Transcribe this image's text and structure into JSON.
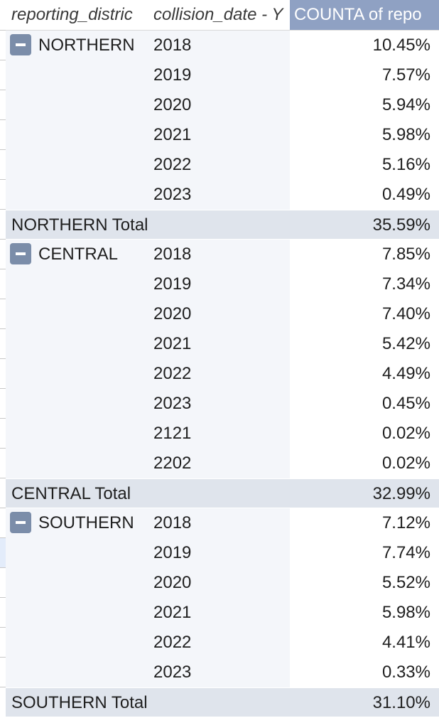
{
  "header": {
    "col1": "reporting_distric",
    "col2": "collision_date - Y",
    "col3": "COUNTA of repo"
  },
  "groups": [
    {
      "name": "NORTHERN",
      "rows": [
        {
          "year": "2018",
          "pct": "10.45%"
        },
        {
          "year": "2019",
          "pct": "7.57%"
        },
        {
          "year": "2020",
          "pct": "5.94%"
        },
        {
          "year": "2021",
          "pct": "5.98%"
        },
        {
          "year": "2022",
          "pct": "5.16%"
        },
        {
          "year": "2023",
          "pct": "0.49%"
        }
      ],
      "total_label": "NORTHERN Total",
      "total_value": "35.59%"
    },
    {
      "name": "CENTRAL",
      "rows": [
        {
          "year": "2018",
          "pct": "7.85%"
        },
        {
          "year": "2019",
          "pct": "7.34%"
        },
        {
          "year": "2020",
          "pct": "7.40%"
        },
        {
          "year": "2021",
          "pct": "5.42%"
        },
        {
          "year": "2022",
          "pct": "4.49%"
        },
        {
          "year": "2023",
          "pct": "0.45%"
        },
        {
          "year": "2121",
          "pct": "0.02%"
        },
        {
          "year": "2202",
          "pct": "0.02%"
        }
      ],
      "total_label": "CENTRAL Total",
      "total_value": "32.99%"
    },
    {
      "name": "SOUTHERN",
      "rows": [
        {
          "year": "2018",
          "pct": "7.12%"
        },
        {
          "year": "2019",
          "pct": "7.74%"
        },
        {
          "year": "2020",
          "pct": "5.52%"
        },
        {
          "year": "2021",
          "pct": "5.98%"
        },
        {
          "year": "2022",
          "pct": "4.41%"
        },
        {
          "year": "2023",
          "pct": "0.33%"
        }
      ],
      "total_label": "SOUTHERN Total",
      "total_value": "31.10%"
    }
  ],
  "colors": {
    "header_value_bg": "#8fa1c3",
    "total_bg": "#dfe4ec",
    "group_bg": "#f4f6fa",
    "toggle_bg": "#7b8da9"
  },
  "icons": {
    "collapse": "minus-square-icon"
  }
}
